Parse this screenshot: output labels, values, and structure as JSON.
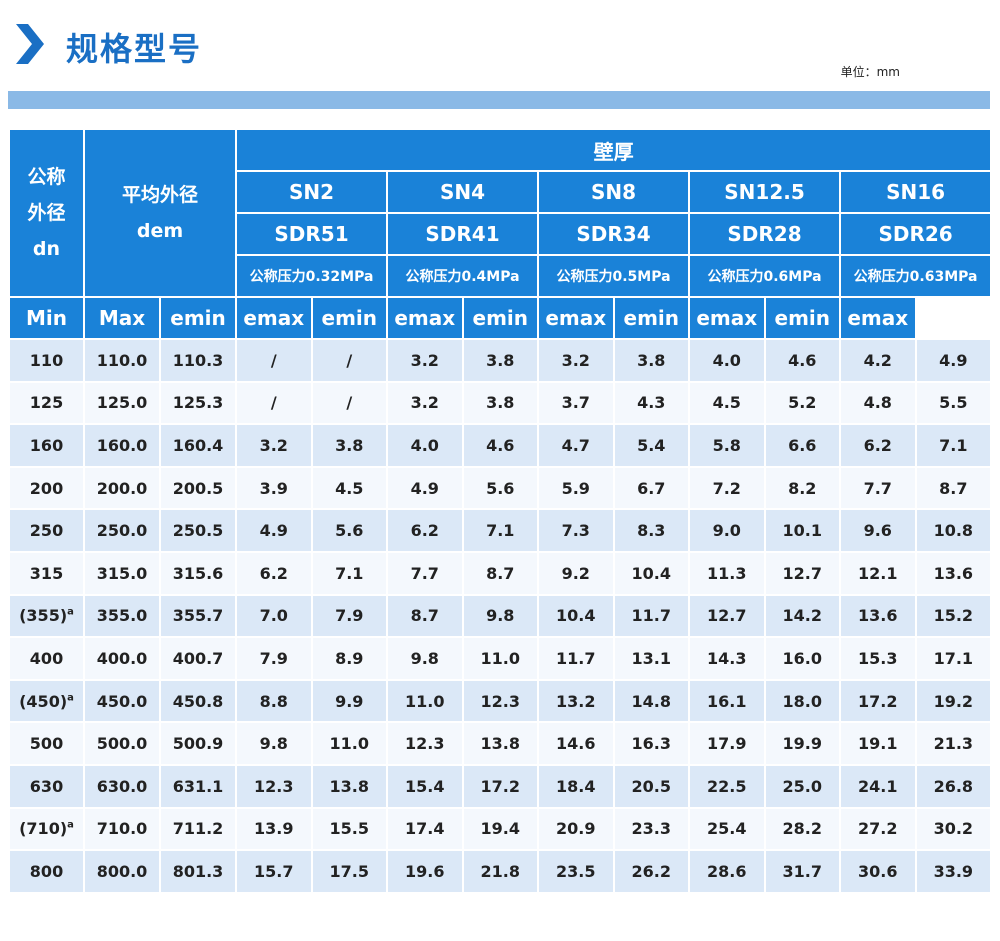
{
  "header": {
    "title": "规格型号",
    "unit": "单位：mm"
  },
  "table": {
    "dn_head": [
      "公称",
      "外径",
      "dn"
    ],
    "dem_head": [
      "平均外径",
      "dem"
    ],
    "dem_sub": [
      "Min",
      "Max"
    ],
    "wall_head": "壁厚",
    "wall_sub": [
      "emin",
      "emax"
    ],
    "groups": [
      {
        "sn": "SN2",
        "sdr": "SDR51",
        "pressure": "公称压力0.32MPa"
      },
      {
        "sn": "SN4",
        "sdr": "SDR41",
        "pressure": "公称压力0.4MPa"
      },
      {
        "sn": "SN8",
        "sdr": "SDR34",
        "pressure": "公称压力0.5MPa"
      },
      {
        "sn": "SN12.5",
        "sdr": "SDR28",
        "pressure": "公称压力0.6MPa"
      },
      {
        "sn": "SN16",
        "sdr": "SDR26",
        "pressure": "公称压力0.63MPa"
      }
    ],
    "rows": [
      [
        {
          "text": "110"
        },
        "110.0",
        "110.3",
        "/",
        "/",
        "3.2",
        "3.8",
        "3.2",
        "3.8",
        "4.0",
        "4.6",
        "4.2",
        "4.9"
      ],
      [
        {
          "text": "125"
        },
        "125.0",
        "125.3",
        "/",
        "/",
        "3.2",
        "3.8",
        "3.7",
        "4.3",
        "4.5",
        "5.2",
        "4.8",
        "5.5"
      ],
      [
        {
          "text": "160"
        },
        "160.0",
        "160.4",
        "3.2",
        "3.8",
        "4.0",
        "4.6",
        "4.7",
        "5.4",
        "5.8",
        "6.6",
        "6.2",
        "7.1"
      ],
      [
        {
          "text": "200"
        },
        "200.0",
        "200.5",
        "3.9",
        "4.5",
        "4.9",
        "5.6",
        "5.9",
        "6.7",
        "7.2",
        "8.2",
        "7.7",
        "8.7"
      ],
      [
        {
          "text": "250"
        },
        "250.0",
        "250.5",
        "4.9",
        "5.6",
        "6.2",
        "7.1",
        "7.3",
        "8.3",
        "9.0",
        "10.1",
        "9.6",
        "10.8"
      ],
      [
        {
          "text": "315"
        },
        "315.0",
        "315.6",
        "6.2",
        "7.1",
        "7.7",
        "8.7",
        "9.2",
        "10.4",
        "11.3",
        "12.7",
        "12.1",
        "13.6"
      ],
      [
        {
          "text": "(355)",
          "sup": "a"
        },
        "355.0",
        "355.7",
        "7.0",
        "7.9",
        "8.7",
        "9.8",
        "10.4",
        "11.7",
        "12.7",
        "14.2",
        "13.6",
        "15.2"
      ],
      [
        {
          "text": "400"
        },
        "400.0",
        "400.7",
        "7.9",
        "8.9",
        "9.8",
        "11.0",
        "11.7",
        "13.1",
        "14.3",
        "16.0",
        "15.3",
        "17.1"
      ],
      [
        {
          "text": "(450)",
          "sup": "a"
        },
        "450.0",
        "450.8",
        "8.8",
        "9.9",
        "11.0",
        "12.3",
        "13.2",
        "14.8",
        "16.1",
        "18.0",
        "17.2",
        "19.2"
      ],
      [
        {
          "text": "500"
        },
        "500.0",
        "500.9",
        "9.8",
        "11.0",
        "12.3",
        "13.8",
        "14.6",
        "16.3",
        "17.9",
        "19.9",
        "19.1",
        "21.3"
      ],
      [
        {
          "text": "630"
        },
        "630.0",
        "631.1",
        "12.3",
        "13.8",
        "15.4",
        "17.2",
        "18.4",
        "20.5",
        "22.5",
        "25.0",
        "24.1",
        "26.8"
      ],
      [
        {
          "text": "(710)",
          "sup": "a"
        },
        "710.0",
        "711.2",
        "13.9",
        "15.5",
        "17.4",
        "19.4",
        "20.9",
        "23.3",
        "25.4",
        "28.2",
        "27.2",
        "30.2"
      ],
      [
        {
          "text": "800"
        },
        "800.0",
        "801.3",
        "15.7",
        "17.5",
        "19.6",
        "21.8",
        "23.5",
        "26.2",
        "28.6",
        "31.7",
        "30.6",
        "33.9"
      ]
    ]
  }
}
